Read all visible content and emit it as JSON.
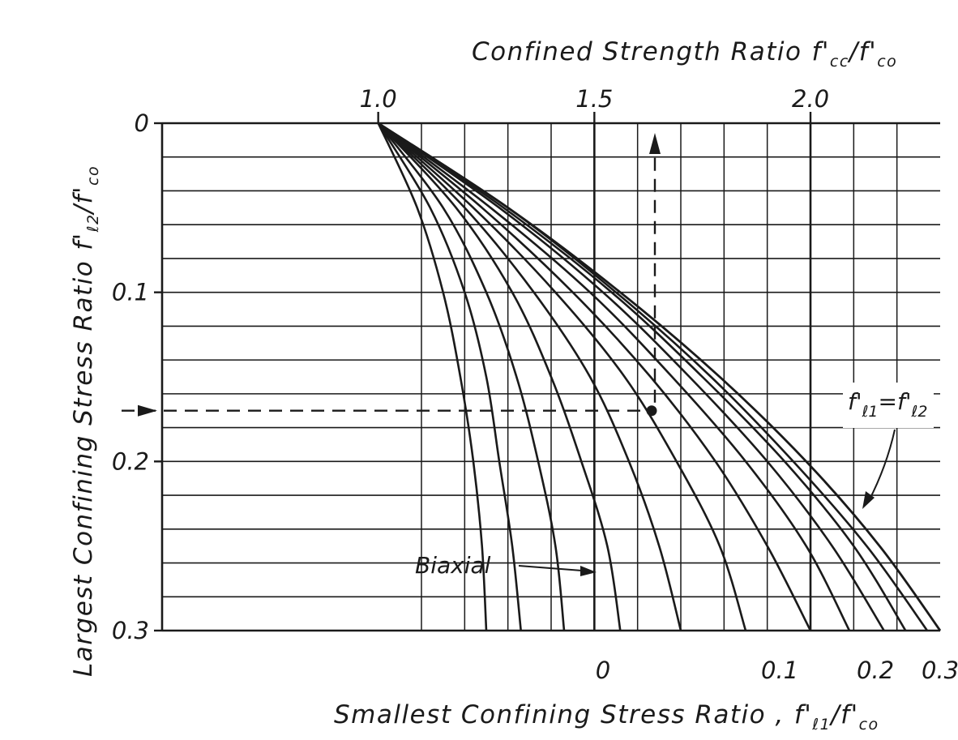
{
  "chart_data": {
    "type": "line",
    "title": "",
    "top_axis": {
      "label_main": "Confined Strength Ratio",
      "label_symbol": "f'",
      "label_sub1": "cc",
      "label_sep": "/f'",
      "label_sub2": "co",
      "ticks": [
        "1.0",
        "1.5",
        "2.0"
      ],
      "tick_values": [
        1.0,
        1.5,
        2.0
      ],
      "range": [
        0.5,
        2.3
      ],
      "gridlines": [
        1.1,
        1.2,
        1.3,
        1.4,
        1.5,
        1.6,
        1.7,
        1.8,
        1.9,
        2.0,
        2.1,
        2.2
      ]
    },
    "left_axis": {
      "label_main": "Largest Confining Stress Ratio",
      "label_symbol": "f'",
      "label_sub1": "ℓ2",
      "label_sep": "/f'",
      "label_sub2": "co",
      "ticks": [
        "0",
        "0.1",
        "0.2",
        "0.3"
      ],
      "tick_values": [
        0,
        0.1,
        0.2,
        0.3
      ],
      "range": [
        0,
        0.3
      ],
      "inverted": true,
      "gridlines": [
        0.02,
        0.04,
        0.06,
        0.08,
        0.1,
        0.12,
        0.14,
        0.16,
        0.18,
        0.2,
        0.22,
        0.24,
        0.26,
        0.28
      ]
    },
    "bottom_axis": {
      "label_main": "Smallest Confining Stress Ratio ,",
      "label_symbol": "f'",
      "label_sub1": "ℓ1",
      "label_sep": "/f'",
      "label_sub2": "co",
      "ticks": [
        "0",
        "0.1",
        "0.2",
        "0.3"
      ],
      "tick_values": [
        0,
        0.1,
        0.2,
        0.3
      ]
    },
    "series": [
      {
        "name": "Biaxial",
        "f_l1": 0,
        "points": [
          [
            1.0,
            0
          ],
          [
            1.09,
            0.05
          ],
          [
            1.15,
            0.1
          ],
          [
            1.19,
            0.15
          ],
          [
            1.22,
            0.2
          ],
          [
            1.24,
            0.25
          ],
          [
            1.25,
            0.3
          ]
        ]
      },
      {
        "f_l1": 0.025,
        "points": [
          [
            1.0,
            0
          ],
          [
            1.12,
            0.05
          ],
          [
            1.2,
            0.1
          ],
          [
            1.25,
            0.15
          ],
          [
            1.28,
            0.2
          ],
          [
            1.31,
            0.25
          ],
          [
            1.33,
            0.3
          ]
        ]
      },
      {
        "f_l1": 0.05,
        "points": [
          [
            1.0,
            0
          ],
          [
            1.15,
            0.05
          ],
          [
            1.25,
            0.1
          ],
          [
            1.32,
            0.15
          ],
          [
            1.37,
            0.2
          ],
          [
            1.41,
            0.25
          ],
          [
            1.43,
            0.3
          ]
        ]
      },
      {
        "f_l1": 0.075,
        "points": [
          [
            1.0,
            0
          ],
          [
            1.18,
            0.05
          ],
          [
            1.31,
            0.1
          ],
          [
            1.4,
            0.15
          ],
          [
            1.47,
            0.2
          ],
          [
            1.53,
            0.25
          ],
          [
            1.56,
            0.3
          ]
        ]
      },
      {
        "f_l1": 0.1,
        "points": [
          [
            1.0,
            0
          ],
          [
            1.2,
            0.05
          ],
          [
            1.36,
            0.1
          ],
          [
            1.49,
            0.15
          ],
          [
            1.58,
            0.2
          ],
          [
            1.65,
            0.25
          ],
          [
            1.7,
            0.3
          ]
        ]
      },
      {
        "f_l1": 0.125,
        "points": [
          [
            1.0,
            0
          ],
          [
            1.22,
            0.05
          ],
          [
            1.41,
            0.1
          ],
          [
            1.57,
            0.15
          ],
          [
            1.69,
            0.2
          ],
          [
            1.79,
            0.25
          ],
          [
            1.85,
            0.3
          ]
        ]
      },
      {
        "f_l1": 0.15,
        "points": [
          [
            1.0,
            0
          ],
          [
            1.24,
            0.05
          ],
          [
            1.45,
            0.1
          ],
          [
            1.63,
            0.15
          ],
          [
            1.78,
            0.2
          ],
          [
            1.9,
            0.25
          ],
          [
            2.0,
            0.3
          ]
        ]
      },
      {
        "f_l1": 0.175,
        "points": [
          [
            1.0,
            0
          ],
          [
            1.26,
            0.05
          ],
          [
            1.49,
            0.1
          ],
          [
            1.68,
            0.15
          ],
          [
            1.85,
            0.2
          ],
          [
            1.99,
            0.25
          ],
          [
            2.09,
            0.3
          ]
        ]
      },
      {
        "f_l1": 0.2,
        "points": [
          [
            1.0,
            0
          ],
          [
            1.28,
            0.05
          ],
          [
            1.52,
            0.1
          ],
          [
            1.72,
            0.15
          ],
          [
            1.9,
            0.2
          ],
          [
            2.05,
            0.25
          ],
          [
            2.17,
            0.3
          ]
        ]
      },
      {
        "f_l1": 0.225,
        "points": [
          [
            1.0,
            0
          ],
          [
            1.29,
            0.05
          ],
          [
            1.54,
            0.1
          ],
          [
            1.75,
            0.15
          ],
          [
            1.94,
            0.2
          ],
          [
            2.1,
            0.25
          ],
          [
            2.22,
            0.3
          ]
        ]
      },
      {
        "f_l1": 0.25,
        "points": [
          [
            1.0,
            0
          ],
          [
            1.3,
            0.05
          ],
          [
            1.55,
            0.1
          ],
          [
            1.77,
            0.15
          ],
          [
            1.96,
            0.2
          ],
          [
            2.13,
            0.25
          ],
          [
            2.27,
            0.3
          ]
        ]
      },
      {
        "name": "f'ℓ1=f'ℓ2",
        "f_l1": 0.3,
        "points": [
          [
            1.0,
            0
          ],
          [
            1.3,
            0.05
          ],
          [
            1.56,
            0.1
          ],
          [
            1.79,
            0.15
          ],
          [
            1.99,
            0.2
          ],
          [
            2.16,
            0.25
          ],
          [
            2.3,
            0.3
          ]
        ]
      }
    ],
    "example": {
      "f_l1": 0.07,
      "f_l2": 0.17,
      "fcc_ratio": 1.64
    },
    "annotations": {
      "biaxial": "Biaxial",
      "equal_symbol1": "f'",
      "equal_sub1": "ℓ1",
      "equal_mid": "=f'",
      "equal_sub2": "ℓ2"
    },
    "grid": true,
    "legend": "none"
  }
}
